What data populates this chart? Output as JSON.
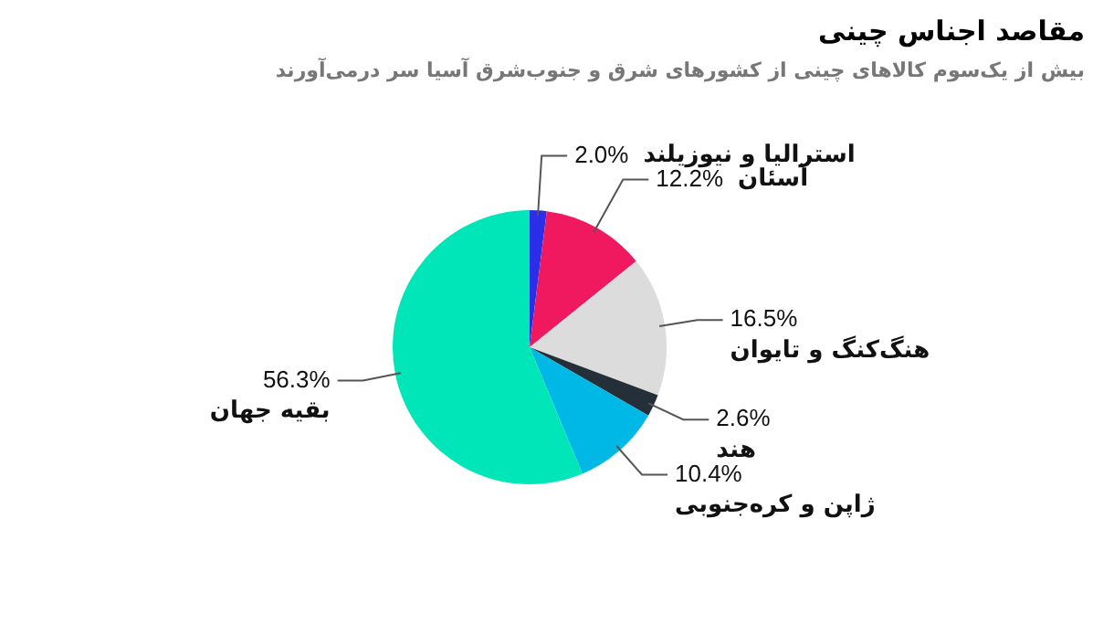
{
  "chart_data": {
    "type": "pie",
    "title": "مقاصد اجناس چینی",
    "subtitle": "بیش از یک‌سوم کالاهای چینی از کشورهای شرق و جنوب‌شرق آسیا سر درمی‌آورند",
    "categories": [
      "استرالیا و نیوزیلند",
      "آسئان",
      "هنگ‌کنگ و تایوان",
      "هند",
      "ژاپن و کره‌جنوبی",
      "بقیه جهان"
    ],
    "values": [
      2.0,
      12.2,
      16.5,
      2.6,
      10.4,
      56.3
    ],
    "value_labels": [
      "2.0%",
      "12.2%",
      "16.5%",
      "2.6%",
      "10.4%",
      "56.3%"
    ],
    "colors": [
      "#2b2ee8",
      "#f0195f",
      "#dcdcdc",
      "#252f3a",
      "#00b8e6",
      "#00e6b8"
    ],
    "legend": false
  }
}
